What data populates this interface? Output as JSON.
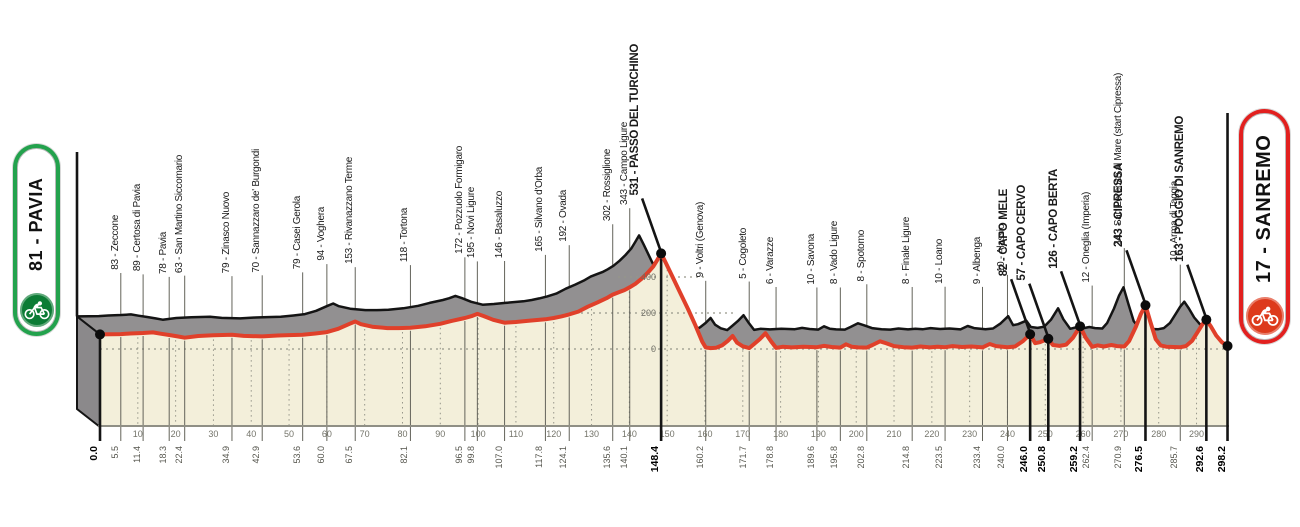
{
  "badges": {
    "start": {
      "label": "81 - PAVIA",
      "accent": "#23a24d",
      "circle": "#0c7c35"
    },
    "finish": {
      "label": "17 - SANREMO",
      "accent": "#e2201f",
      "circle": "#dd3a1c"
    }
  },
  "chart_data": {
    "type": "area",
    "subject": "road race elevation profile",
    "x_axis": {
      "unit": "km",
      "tick_min": 10,
      "tick_max": 290,
      "tick_step": 10
    },
    "y_axis": {
      "unit": "m",
      "ticks": [
        0,
        200,
        400
      ]
    },
    "start": {
      "km": 0.0,
      "km_label": "0.0",
      "elevation_m": 81,
      "name": "PAVIA",
      "bold": true
    },
    "finish": {
      "km": 298.2,
      "km_label": "298.2",
      "elevation_m": 17,
      "name": "SANREMO",
      "bold": true
    },
    "waypoints": [
      {
        "km": 5.5,
        "km_label": "5.5",
        "elevation_m": 83,
        "label": "83 - Zeccone",
        "bold": false
      },
      {
        "km": 11.4,
        "km_label": "11.4",
        "elevation_m": 89,
        "label": "89 - Certosa di Pavia",
        "bold": false
      },
      {
        "km": 18.3,
        "km_label": "18.3",
        "elevation_m": 78,
        "label": "78 - Pavia",
        "bold": false
      },
      {
        "km": 22.4,
        "km_label": "22.4",
        "elevation_m": 63,
        "label": "63 - San Martino Siccomario",
        "bold": false
      },
      {
        "km": 34.9,
        "km_label": "34.9",
        "elevation_m": 79,
        "label": "79 - Zinasco Nuovo",
        "bold": false
      },
      {
        "km": 42.9,
        "km_label": "42.9",
        "elevation_m": 70,
        "label": "70 - Sannazzaro de' Burgondi",
        "bold": false
      },
      {
        "km": 53.6,
        "km_label": "53.6",
        "elevation_m": 79,
        "label": "79 - Casei Gerola",
        "bold": false
      },
      {
        "km": 60.0,
        "km_label": "60.0",
        "elevation_m": 94,
        "label": "94 - Voghera",
        "bold": false
      },
      {
        "km": 67.5,
        "km_label": "67.5",
        "elevation_m": 153,
        "label": "153 - Rivanazzano Terme",
        "bold": false
      },
      {
        "km": 82.1,
        "km_label": "82.1",
        "elevation_m": 118,
        "label": "118 - Tortona",
        "bold": false
      },
      {
        "km": 96.5,
        "km_label": "96.5",
        "elevation_m": 172,
        "label": "172 - Pozzuolo Formigaro",
        "bold": false
      },
      {
        "km": 99.8,
        "km_label": "99.8",
        "elevation_m": 195,
        "label": "195 - Novi Ligure",
        "bold": false
      },
      {
        "km": 107.0,
        "km_label": "107.0",
        "elevation_m": 146,
        "label": "146 - Basaluzzo",
        "bold": false
      },
      {
        "km": 117.8,
        "km_label": "117.8",
        "elevation_m": 165,
        "label": "165 - Silvano d'Orba",
        "bold": false
      },
      {
        "km": 124.1,
        "km_label": "124.1",
        "elevation_m": 192,
        "label": "192 - Ovada",
        "bold": false
      },
      {
        "km": 135.6,
        "km_label": "135.6",
        "elevation_m": 302,
        "label": "302 - Rossiglione",
        "bold": false
      },
      {
        "km": 140.1,
        "km_label": "140.1",
        "elevation_m": 343,
        "label": "343 - Campo Ligure",
        "bold": false
      },
      {
        "km": 148.4,
        "km_label": "148.4",
        "elevation_m": 531,
        "label": "531 - PASSO DEL TURCHINO",
        "bold": true
      },
      {
        "km": 160.2,
        "km_label": "160.2",
        "elevation_m": 9,
        "label": "9 - Voltri (Genova)",
        "bold": false
      },
      {
        "km": 171.7,
        "km_label": "171.7",
        "elevation_m": 5,
        "label": "5 - Cogoleto",
        "bold": false
      },
      {
        "km": 178.8,
        "km_label": "178.8",
        "elevation_m": 6,
        "label": "6 - Varazze",
        "bold": false
      },
      {
        "km": 189.6,
        "km_label": "189.6",
        "elevation_m": 10,
        "label": "10 - Savona",
        "bold": false
      },
      {
        "km": 195.8,
        "km_label": "195.8",
        "elevation_m": 8,
        "label": "8 - Vado Ligure",
        "bold": false
      },
      {
        "km": 202.8,
        "km_label": "202.8",
        "elevation_m": 8,
        "label": "8 - Spotorno",
        "bold": false
      },
      {
        "km": 214.8,
        "km_label": "214.8",
        "elevation_m": 8,
        "label": "8 - Finale Ligure",
        "bold": false
      },
      {
        "km": 223.5,
        "km_label": "223.5",
        "elevation_m": 10,
        "label": "10 - Loano",
        "bold": false
      },
      {
        "km": 233.4,
        "km_label": "233.4",
        "elevation_m": 9,
        "label": "9 - Albenga",
        "bold": false
      },
      {
        "km": 240.0,
        "km_label": "240.0",
        "elevation_m": 10,
        "label": "10 - Alassio",
        "bold": false
      },
      {
        "km": 246.0,
        "km_label": "246.0",
        "elevation_m": 82,
        "label": "82 - CAPO MELE",
        "bold": true
      },
      {
        "km": 250.8,
        "km_label": "250.8",
        "elevation_m": 57,
        "label": "57 - CAPO CERVO",
        "bold": true
      },
      {
        "km": 259.2,
        "km_label": "259.2",
        "elevation_m": 126,
        "label": "126 - CAPO BERTA",
        "bold": true
      },
      {
        "km": 262.4,
        "km_label": "262.4",
        "elevation_m": 12,
        "label": "12 - Oneglia (Imperia)",
        "bold": false
      },
      {
        "km": 270.9,
        "km_label": "270.9",
        "elevation_m": 14,
        "label": "14 - San Lorenzo al Mare (start Cipressa)",
        "bold": false
      },
      {
        "km": 276.5,
        "km_label": "276.5",
        "elevation_m": 243,
        "label": "243 - CIPRESSA",
        "bold": true
      },
      {
        "km": 285.7,
        "km_label": "285.7",
        "elevation_m": 10,
        "label": "10 - Arma di Taggia",
        "bold": false
      },
      {
        "km": 292.6,
        "km_label": "292.6",
        "elevation_m": 163,
        "label": "163 - POGGIO DI SANREMO",
        "bold": true
      }
    ],
    "profile": [
      [
        0,
        81
      ],
      [
        3,
        82
      ],
      [
        5.5,
        83
      ],
      [
        8,
        86
      ],
      [
        11.4,
        89
      ],
      [
        14,
        92
      ],
      [
        16,
        85
      ],
      [
        18.3,
        78
      ],
      [
        20.5,
        70
      ],
      [
        22.4,
        63
      ],
      [
        26,
        72
      ],
      [
        30,
        76
      ],
      [
        34.9,
        79
      ],
      [
        38,
        73
      ],
      [
        42.9,
        70
      ],
      [
        47,
        75
      ],
      [
        50,
        77
      ],
      [
        53.6,
        79
      ],
      [
        57,
        86
      ],
      [
        60,
        94
      ],
      [
        63,
        112
      ],
      [
        66,
        140
      ],
      [
        67.5,
        153
      ],
      [
        69,
        138
      ],
      [
        72,
        124
      ],
      [
        76,
        116
      ],
      [
        79,
        116
      ],
      [
        82.1,
        118
      ],
      [
        86,
        126
      ],
      [
        90,
        140
      ],
      [
        93,
        156
      ],
      [
        96.5,
        172
      ],
      [
        98.2,
        182
      ],
      [
        99.8,
        195
      ],
      [
        101.5,
        183
      ],
      [
        104,
        162
      ],
      [
        107,
        146
      ],
      [
        110,
        150
      ],
      [
        113,
        156
      ],
      [
        117.8,
        165
      ],
      [
        120,
        172
      ],
      [
        122,
        181
      ],
      [
        124.1,
        192
      ],
      [
        126.5,
        208
      ],
      [
        129,
        235
      ],
      [
        131.5,
        258
      ],
      [
        134,
        283
      ],
      [
        135.6,
        302
      ],
      [
        137.3,
        316
      ],
      [
        138.7,
        327
      ],
      [
        140.1,
        343
      ],
      [
        141.6,
        362
      ],
      [
        143.2,
        390
      ],
      [
        144.8,
        422
      ],
      [
        146.3,
        458
      ],
      [
        147.4,
        495
      ],
      [
        148.4,
        531
      ],
      [
        149.6,
        480
      ],
      [
        151.5,
        398
      ],
      [
        153.5,
        310
      ],
      [
        155.5,
        222
      ],
      [
        157.5,
        130
      ],
      [
        159.3,
        40
      ],
      [
        160.2,
        9
      ],
      [
        161.5,
        5
      ],
      [
        163,
        7
      ],
      [
        164.5,
        20
      ],
      [
        166,
        45
      ],
      [
        167.3,
        72
      ],
      [
        168.5,
        35
      ],
      [
        170,
        15
      ],
      [
        171.7,
        5
      ],
      [
        173,
        28
      ],
      [
        174.5,
        55
      ],
      [
        176,
        88
      ],
      [
        177.5,
        42
      ],
      [
        178.8,
        6
      ],
      [
        180.5,
        12
      ],
      [
        183,
        9
      ],
      [
        186,
        13
      ],
      [
        189.6,
        10
      ],
      [
        191.5,
        17
      ],
      [
        193.5,
        11
      ],
      [
        195.8,
        8
      ],
      [
        197.3,
        26
      ],
      [
        198.8,
        13
      ],
      [
        200.5,
        9
      ],
      [
        202.8,
        8
      ],
      [
        204.3,
        22
      ],
      [
        206.3,
        43
      ],
      [
        208,
        31
      ],
      [
        210,
        16
      ],
      [
        212.5,
        10
      ],
      [
        214.8,
        8
      ],
      [
        217,
        14
      ],
      [
        219.5,
        9
      ],
      [
        221.5,
        13
      ],
      [
        223.5,
        10
      ],
      [
        225.5,
        16
      ],
      [
        228,
        11
      ],
      [
        230.5,
        14
      ],
      [
        233.4,
        9
      ],
      [
        235.3,
        28
      ],
      [
        237,
        16
      ],
      [
        240,
        10
      ],
      [
        242,
        14
      ],
      [
        244,
        42
      ],
      [
        246,
        82
      ],
      [
        247.3,
        32
      ],
      [
        248.6,
        38
      ],
      [
        250.8,
        57
      ],
      [
        252,
        22
      ],
      [
        253.8,
        17
      ],
      [
        255.5,
        24
      ],
      [
        257.3,
        62
      ],
      [
        259.2,
        126
      ],
      [
        260.6,
        65
      ],
      [
        262.4,
        12
      ],
      [
        263.8,
        20
      ],
      [
        265.5,
        14
      ],
      [
        267.5,
        22
      ],
      [
        269,
        16
      ],
      [
        270.9,
        14
      ],
      [
        272.2,
        45
      ],
      [
        274,
        125
      ],
      [
        275.3,
        195
      ],
      [
        276.5,
        243
      ],
      [
        277.8,
        150
      ],
      [
        279.2,
        55
      ],
      [
        280.5,
        20
      ],
      [
        282,
        13
      ],
      [
        284,
        11
      ],
      [
        285.7,
        10
      ],
      [
        287.2,
        16
      ],
      [
        288.8,
        45
      ],
      [
        290.3,
        95
      ],
      [
        291.5,
        135
      ],
      [
        292.6,
        163
      ],
      [
        293.8,
        125
      ],
      [
        295.2,
        75
      ],
      [
        296.7,
        38
      ],
      [
        298.2,
        17
      ]
    ]
  },
  "colors": {
    "profile_line": "#e0402a",
    "terrain_band": "#929091",
    "terrain_face": "#8b898b",
    "terrain_fill": "#f3efda",
    "outline": "#141414",
    "grid_dots": "#96968a",
    "axis": "#8f8f85",
    "tick_text": "#74746a",
    "waypoint_line": "#63635a",
    "elev_text": "#6c6c64"
  }
}
